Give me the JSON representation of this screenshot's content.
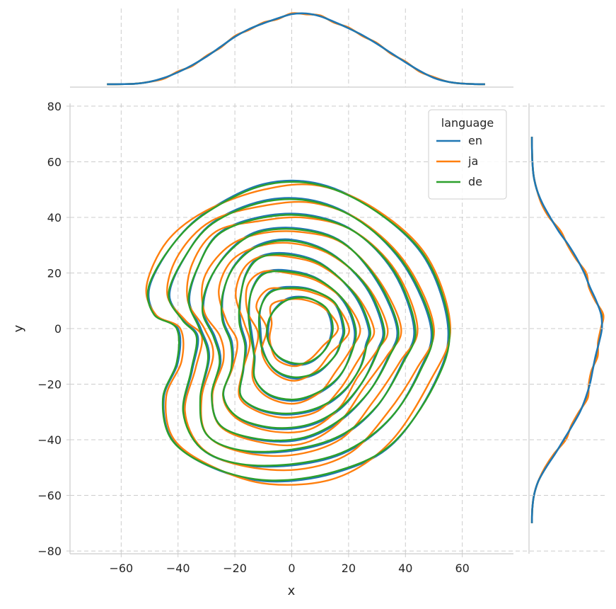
{
  "chart_data": {
    "type": "kde-jointplot",
    "xlabel": "x",
    "ylabel": "y",
    "xlim": [
      -78,
      78
    ],
    "ylim": [
      -81,
      81
    ],
    "xticks": [
      -60,
      -40,
      -20,
      0,
      20,
      40,
      60
    ],
    "yticks": [
      -80,
      -60,
      -40,
      -20,
      0,
      20,
      40,
      60,
      80
    ],
    "xtick_labels": [
      "−60",
      "−40",
      "−20",
      "0",
      "20",
      "40",
      "60"
    ],
    "ytick_labels": [
      "−80",
      "−60",
      "−40",
      "−20",
      "0",
      "20",
      "40",
      "60",
      "80"
    ],
    "grid": true,
    "legend": {
      "title": "language",
      "position": "top-right",
      "entries": [
        "en",
        "ja",
        "de"
      ]
    },
    "series": [
      {
        "name": "en",
        "color": "#1f77b4"
      },
      {
        "name": "ja",
        "color": "#ff7f0e"
      },
      {
        "name": "de",
        "color": "#2ca02c"
      }
    ],
    "contour_levels": [
      {
        "pts": [
          [
            55,
            0
          ],
          [
            47,
            25
          ],
          [
            30,
            42
          ],
          [
            10,
            52
          ],
          [
            -10,
            52
          ],
          [
            -30,
            42
          ],
          [
            -42,
            30
          ],
          [
            -50,
            15
          ],
          [
            -48,
            5
          ],
          [
            -40,
            0
          ],
          [
            -40,
            -12
          ],
          [
            -45,
            -25
          ],
          [
            -42,
            -40
          ],
          [
            -28,
            -50
          ],
          [
            -8,
            -55
          ],
          [
            15,
            -52
          ],
          [
            35,
            -42
          ],
          [
            50,
            -20
          ]
        ]
      },
      {
        "pts": [
          [
            49,
            0
          ],
          [
            40,
            22
          ],
          [
            25,
            38
          ],
          [
            8,
            46
          ],
          [
            -10,
            46
          ],
          [
            -28,
            38
          ],
          [
            -38,
            25
          ],
          [
            -43,
            12
          ],
          [
            -38,
            3
          ],
          [
            -33,
            -3
          ],
          [
            -35,
            -15
          ],
          [
            -38,
            -30
          ],
          [
            -32,
            -43
          ],
          [
            -18,
            -49
          ],
          [
            2,
            -49
          ],
          [
            20,
            -44
          ],
          [
            35,
            -32
          ],
          [
            45,
            -15
          ]
        ]
      },
      {
        "pts": [
          [
            43,
            0
          ],
          [
            36,
            20
          ],
          [
            22,
            35
          ],
          [
            5,
            41
          ],
          [
            -12,
            40
          ],
          [
            -26,
            34
          ],
          [
            -33,
            22
          ],
          [
            -36,
            10
          ],
          [
            -32,
            0
          ],
          [
            -29,
            -10
          ],
          [
            -32,
            -25
          ],
          [
            -30,
            -38
          ],
          [
            -18,
            -44
          ],
          [
            0,
            -44
          ],
          [
            17,
            -39
          ],
          [
            30,
            -28
          ],
          [
            39,
            -12
          ]
        ]
      },
      {
        "pts": [
          [
            37,
            0
          ],
          [
            30,
            17
          ],
          [
            18,
            31
          ],
          [
            3,
            36
          ],
          [
            -12,
            35
          ],
          [
            -22,
            28
          ],
          [
            -29,
            17
          ],
          [
            -31,
            6
          ],
          [
            -27,
            -3
          ],
          [
            -25,
            -12
          ],
          [
            -28,
            -24
          ],
          [
            -25,
            -35
          ],
          [
            -12,
            -40
          ],
          [
            3,
            -40
          ],
          [
            16,
            -34
          ],
          [
            27,
            -23
          ],
          [
            34,
            -10
          ]
        ]
      },
      {
        "pts": [
          [
            32,
            0
          ],
          [
            26,
            15
          ],
          [
            14,
            27
          ],
          [
            0,
            32
          ],
          [
            -12,
            30
          ],
          [
            -20,
            23
          ],
          [
            -24,
            13
          ],
          [
            -24,
            3
          ],
          [
            -21,
            -5
          ],
          [
            -21,
            -14
          ],
          [
            -24,
            -24
          ],
          [
            -19,
            -32
          ],
          [
            -7,
            -36
          ],
          [
            6,
            -35
          ],
          [
            17,
            -29
          ],
          [
            25,
            -19
          ],
          [
            30,
            -8
          ]
        ]
      },
      {
        "pts": [
          [
            27,
            0
          ],
          [
            22,
            12
          ],
          [
            11,
            23
          ],
          [
            -1,
            27
          ],
          [
            -11,
            26
          ],
          [
            -16,
            20
          ],
          [
            -18,
            11
          ],
          [
            -18,
            2
          ],
          [
            -16,
            -6
          ],
          [
            -17,
            -15
          ],
          [
            -18,
            -24
          ],
          [
            -12,
            -29
          ],
          [
            -2,
            -31
          ],
          [
            9,
            -29
          ],
          [
            18,
            -23
          ],
          [
            24,
            -14
          ],
          [
            26,
            -6
          ]
        ]
      },
      {
        "pts": [
          [
            22,
            0
          ],
          [
            18,
            10
          ],
          [
            9,
            18
          ],
          [
            -2,
            21
          ],
          [
            -10,
            20
          ],
          [
            -14,
            14
          ],
          [
            -15,
            6
          ],
          [
            -14,
            -2
          ],
          [
            -13,
            -10
          ],
          [
            -13,
            -18
          ],
          [
            -8,
            -24
          ],
          [
            1,
            -26
          ],
          [
            10,
            -23
          ],
          [
            17,
            -17
          ],
          [
            21,
            -8
          ]
        ]
      },
      {
        "pts": [
          [
            18,
            0
          ],
          [
            15,
            9
          ],
          [
            7,
            14
          ],
          [
            -2,
            15
          ],
          [
            -8,
            13
          ],
          [
            -11,
            7
          ],
          [
            -11,
            0
          ],
          [
            -10,
            -8
          ],
          [
            -6,
            -15
          ],
          [
            1,
            -18
          ],
          [
            9,
            -16
          ],
          [
            15,
            -10
          ],
          [
            17,
            -5
          ]
        ]
      },
      {
        "pts": [
          [
            14,
            0
          ],
          [
            12,
            7
          ],
          [
            6,
            11
          ],
          [
            -1,
            11
          ],
          [
            -6,
            7
          ],
          [
            -8,
            2
          ],
          [
            -8,
            -4
          ],
          [
            -5,
            -10
          ],
          [
            1,
            -13
          ],
          [
            7,
            -12
          ],
          [
            12,
            -7
          ]
        ]
      }
    ],
    "marginal_x": {
      "x": [
        -65,
        -60,
        -55,
        -50,
        -45,
        -40,
        -35,
        -30,
        -25,
        -20,
        -15,
        -10,
        -5,
        0,
        5,
        10,
        15,
        20,
        25,
        30,
        35,
        40,
        45,
        50,
        55,
        60,
        65,
        68
      ],
      "density": [
        0.001,
        0.002,
        0.008,
        0.035,
        0.09,
        0.17,
        0.27,
        0.39,
        0.53,
        0.67,
        0.78,
        0.86,
        0.93,
        0.99,
        1.0,
        0.96,
        0.88,
        0.79,
        0.69,
        0.57,
        0.44,
        0.31,
        0.19,
        0.09,
        0.035,
        0.01,
        0.002,
        0.001
      ]
    },
    "marginal_y": {
      "y": [
        -70,
        -65,
        -60,
        -55,
        -50,
        -45,
        -40,
        -35,
        -30,
        -25,
        -20,
        -15,
        -10,
        -5,
        0,
        5,
        10,
        15,
        20,
        25,
        30,
        35,
        40,
        45,
        50,
        55,
        60,
        65,
        69
      ],
      "density": [
        0.001,
        0.006,
        0.03,
        0.09,
        0.2,
        0.33,
        0.45,
        0.57,
        0.68,
        0.76,
        0.82,
        0.86,
        0.9,
        0.95,
        0.99,
        0.98,
        0.91,
        0.82,
        0.74,
        0.64,
        0.52,
        0.38,
        0.26,
        0.15,
        0.07,
        0.025,
        0.008,
        0.002,
        0.001
      ]
    }
  }
}
